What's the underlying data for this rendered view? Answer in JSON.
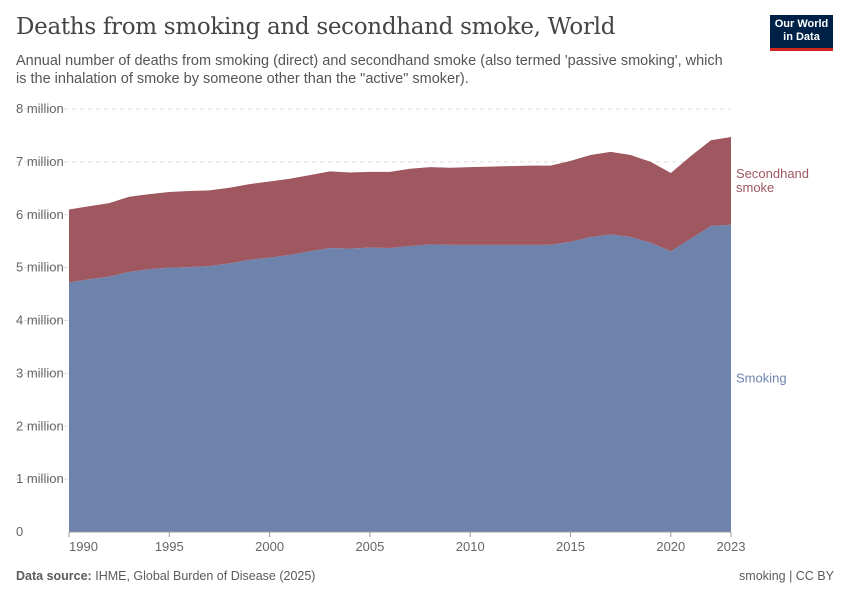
{
  "header": {
    "title": "Deaths from smoking and secondhand smoke, World",
    "subtitle": "Annual number of deaths from smoking (direct) and secondhand smoke (also termed 'passive smoking', which is the inhalation of smoke by someone other than the \"active\" smoker).",
    "logo_line1": "Our World",
    "logo_line2": "in Data"
  },
  "footer": {
    "source_label": "Data source:",
    "source": "IHME, Global Burden of Disease (2025)",
    "license": "smoking | CC BY"
  },
  "chart_data": {
    "type": "area",
    "stacked": true,
    "title": "Deaths from smoking and secondhand smoke, World",
    "x": [
      1990,
      1991,
      1992,
      1993,
      1994,
      1995,
      1996,
      1997,
      1998,
      1999,
      2000,
      2001,
      2002,
      2003,
      2004,
      2005,
      2006,
      2007,
      2008,
      2009,
      2010,
      2011,
      2012,
      2013,
      2014,
      2015,
      2016,
      2017,
      2018,
      2019,
      2020,
      2021,
      2022,
      2023
    ],
    "series": [
      {
        "name": "Smoking",
        "color": "#6d83ac",
        "values": [
          4.72,
          4.78,
          4.83,
          4.92,
          4.97,
          5.0,
          5.01,
          5.03,
          5.08,
          5.15,
          5.19,
          5.24,
          5.31,
          5.37,
          5.36,
          5.38,
          5.37,
          5.41,
          5.44,
          5.43,
          5.43,
          5.43,
          5.43,
          5.43,
          5.43,
          5.49,
          5.58,
          5.63,
          5.58,
          5.47,
          5.31,
          5.55,
          5.79,
          5.81
        ]
      },
      {
        "name": "Secondhand smoke",
        "label_lines": [
          "Secondhand",
          "smoke"
        ],
        "color": "#9f5760",
        "values": [
          1.38,
          1.38,
          1.39,
          1.42,
          1.42,
          1.43,
          1.44,
          1.43,
          1.43,
          1.43,
          1.44,
          1.44,
          1.44,
          1.45,
          1.44,
          1.43,
          1.44,
          1.46,
          1.46,
          1.46,
          1.47,
          1.48,
          1.49,
          1.5,
          1.5,
          1.53,
          1.55,
          1.56,
          1.55,
          1.53,
          1.48,
          1.56,
          1.62,
          1.66
        ]
      }
    ],
    "unit": "million",
    "ylim": [
      0,
      8
    ],
    "y_ticks": [
      {
        "v": 0,
        "label": "0"
      },
      {
        "v": 1,
        "label": "1 million"
      },
      {
        "v": 2,
        "label": "2 million"
      },
      {
        "v": 3,
        "label": "3 million"
      },
      {
        "v": 4,
        "label": "4 million"
      },
      {
        "v": 5,
        "label": "5 million"
      },
      {
        "v": 6,
        "label": "6 million"
      },
      {
        "v": 7,
        "label": "7 million"
      },
      {
        "v": 8,
        "label": "8 million"
      }
    ],
    "x_ticks": [
      1990,
      1995,
      2000,
      2005,
      2010,
      2015,
      2020,
      2023
    ],
    "grid": true,
    "legend": "right-inline"
  }
}
